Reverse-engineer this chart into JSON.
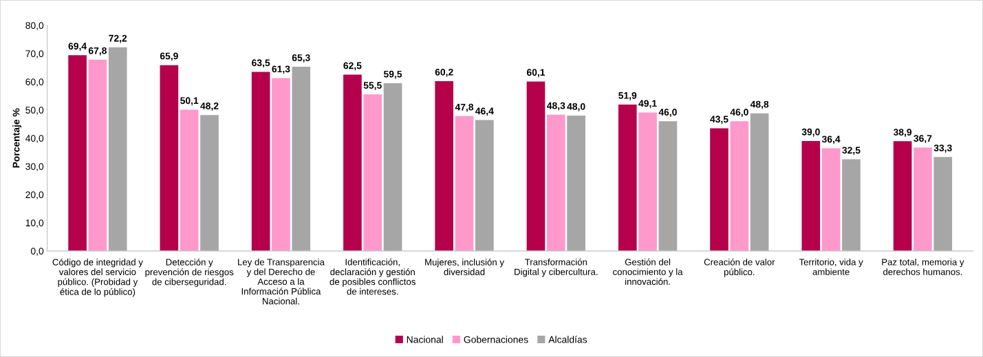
{
  "chart_data": {
    "type": "bar",
    "ylabel": "Porcentaje %",
    "categories": [
      "Código de integridad y\nvalores del servicio\npúblico. (Probidad y\nética de lo público)",
      "Detección y\nprevención de riesgos\nde ciberseguridad.",
      "Ley de Transparencia\ny del Derecho de\nAcceso a la\nInformación Pública\nNacional.",
      "Identificación,\ndeclaración y gestión\nde posibles conflictos\nde intereses.",
      "Mujeres, inclusión y\ndiversidad",
      "Transformación\nDigital y cibercultura.",
      "Gestión del\nconocimiento y la\ninnovación.",
      "Creación de valor\npúblico.",
      "Territorio, vida y\nambiente",
      "Paz total, memoria y\nderechos humanos."
    ],
    "series": [
      {
        "name": "Nacional",
        "color": "#b5004b",
        "values": [
          69.4,
          65.9,
          63.5,
          62.5,
          60.2,
          60.1,
          51.9,
          43.5,
          39.0,
          38.9
        ],
        "value_labels": [
          "69,4",
          "65,9",
          "63,5",
          "62,5",
          "60,2",
          "60,1",
          "51,9",
          "43,5",
          "39,0",
          "38,9"
        ]
      },
      {
        "name": "Gobernaciones",
        "color": "#ff99cc",
        "values": [
          67.8,
          50.1,
          61.3,
          55.5,
          47.8,
          48.3,
          49.1,
          46.0,
          36.4,
          36.7
        ],
        "value_labels": [
          "67,8",
          "50,1",
          "61,3",
          "55,5",
          "47,8",
          "48,3",
          "49,1",
          "46,0",
          "36,4",
          "36,7"
        ]
      },
      {
        "name": "Alcaldías",
        "color": "#a6a6a6",
        "values": [
          72.2,
          48.2,
          65.3,
          59.5,
          46.4,
          48.0,
          46.0,
          48.8,
          32.5,
          33.3
        ],
        "value_labels": [
          "72,2",
          "48,2",
          "65,3",
          "59,5",
          "46,4",
          "48,0",
          "46,0",
          "48,8",
          "32,5",
          "33,3"
        ]
      }
    ],
    "ylim": [
      0,
      80
    ],
    "yticks": [
      {
        "value": 0,
        "label": "0,0"
      },
      {
        "value": 10,
        "label": "10,0"
      },
      {
        "value": 20,
        "label": "20,0"
      },
      {
        "value": 30,
        "label": "30,0"
      },
      {
        "value": 40,
        "label": "40,0"
      },
      {
        "value": 50,
        "label": "50,0"
      },
      {
        "value": 60,
        "label": "60,0"
      },
      {
        "value": 70,
        "label": "70,0"
      },
      {
        "value": 80,
        "label": "80,0"
      }
    ],
    "grid": false,
    "legend": "bottom"
  }
}
